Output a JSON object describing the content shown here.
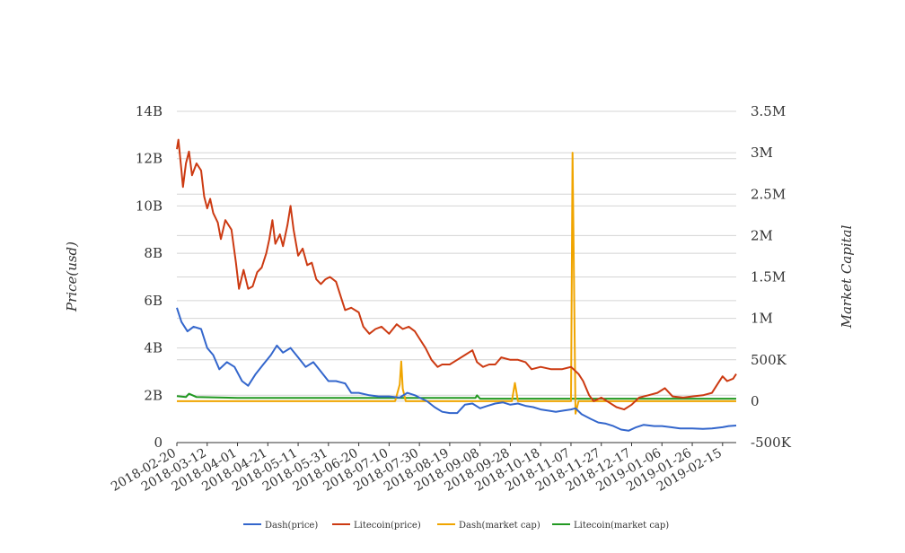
{
  "chart_data": {
    "type": "line",
    "title": "",
    "y_left_label": "Price(usd)",
    "y_right_label": "Market Capital",
    "y_left_ticks": [
      "0",
      "2B",
      "4B",
      "6B",
      "8B",
      "10B",
      "12B",
      "14B"
    ],
    "y_right_ticks": [
      "-500K",
      "0",
      "500K",
      "1M",
      "1.5M",
      "2M",
      "2.5M",
      "3M",
      "3.5M"
    ],
    "y_left_range": [
      0,
      14000000000
    ],
    "y_right_range": [
      -500000,
      3500000
    ],
    "x_range": [
      "2018-02-20",
      "2019-02-24"
    ],
    "x_ticks": [
      "2018-02-20",
      "2018-03-12",
      "2018-04-01",
      "2018-04-21",
      "2018-05-11",
      "2018-05-31",
      "2018-06-20",
      "2018-07-10",
      "2018-07-30",
      "2018-08-19",
      "2018-09-08",
      "2018-09-28",
      "2018-10-18",
      "2018-11-07",
      "2018-11-27",
      "2018-12-17",
      "2019-01-06",
      "2019-01-26",
      "2019-02-15"
    ],
    "grid": true,
    "legend_position": "bottom",
    "series": [
      {
        "name": "Dash(price)",
        "axis": "left",
        "color": "#3366cc",
        "points": [
          [
            "2018-02-20",
            5700000000.0
          ],
          [
            "2018-02-23",
            5100000000.0
          ],
          [
            "2018-02-27",
            4700000000.0
          ],
          [
            "2018-03-03",
            4900000000.0
          ],
          [
            "2018-03-08",
            4800000000.0
          ],
          [
            "2018-03-12",
            4000000000.0
          ],
          [
            "2018-03-16",
            3700000000.0
          ],
          [
            "2018-03-20",
            3100000000.0
          ],
          [
            "2018-03-25",
            3400000000.0
          ],
          [
            "2018-03-30",
            3200000000.0
          ],
          [
            "2018-04-04",
            2600000000.0
          ],
          [
            "2018-04-08",
            2400000000.0
          ],
          [
            "2018-04-13",
            2900000000.0
          ],
          [
            "2018-04-18",
            3300000000.0
          ],
          [
            "2018-04-23",
            3700000000.0
          ],
          [
            "2018-04-27",
            4100000000.0
          ],
          [
            "2018-05-01",
            3800000000.0
          ],
          [
            "2018-05-06",
            4000000000.0
          ],
          [
            "2018-05-11",
            3600000000.0
          ],
          [
            "2018-05-16",
            3200000000.0
          ],
          [
            "2018-05-21",
            3400000000.0
          ],
          [
            "2018-05-26",
            3000000000.0
          ],
          [
            "2018-05-31",
            2600000000.0
          ],
          [
            "2018-06-05",
            2600000000.0
          ],
          [
            "2018-06-11",
            2500000000.0
          ],
          [
            "2018-06-15",
            2100000000.0
          ],
          [
            "2018-06-20",
            2100000000.0
          ],
          [
            "2018-06-27",
            2000000000.0
          ],
          [
            "2018-07-03",
            1950000000.0
          ],
          [
            "2018-07-10",
            1950000000.0
          ],
          [
            "2018-07-17",
            1900000000.0
          ],
          [
            "2018-07-22",
            2100000000.0
          ],
          [
            "2018-07-27",
            2000000000.0
          ],
          [
            "2018-07-30",
            1900000000.0
          ],
          [
            "2018-08-04",
            1750000000.0
          ],
          [
            "2018-08-09",
            1500000000.0
          ],
          [
            "2018-08-14",
            1300000000.0
          ],
          [
            "2018-08-19",
            1250000000.0
          ],
          [
            "2018-08-24",
            1250000000.0
          ],
          [
            "2018-08-29",
            1600000000.0
          ],
          [
            "2018-09-03",
            1650000000.0
          ],
          [
            "2018-09-08",
            1450000000.0
          ],
          [
            "2018-09-13",
            1550000000.0
          ],
          [
            "2018-09-18",
            1650000000.0
          ],
          [
            "2018-09-23",
            1700000000.0
          ],
          [
            "2018-09-28",
            1600000000.0
          ],
          [
            "2018-10-03",
            1650000000.0
          ],
          [
            "2018-10-08",
            1550000000.0
          ],
          [
            "2018-10-13",
            1500000000.0
          ],
          [
            "2018-10-18",
            1400000000.0
          ],
          [
            "2018-10-23",
            1350000000.0
          ],
          [
            "2018-10-28",
            1300000000.0
          ],
          [
            "2018-11-02",
            1350000000.0
          ],
          [
            "2018-11-07",
            1400000000.0
          ],
          [
            "2018-11-10",
            1450000000.0
          ],
          [
            "2018-11-14",
            1200000000.0
          ],
          [
            "2018-11-20",
            1000000000.0
          ],
          [
            "2018-11-25",
            850000000.0
          ],
          [
            "2018-11-30",
            800000000.0
          ],
          [
            "2018-12-05",
            700000000.0
          ],
          [
            "2018-12-10",
            550000000.0
          ],
          [
            "2018-12-15",
            500000000.0
          ],
          [
            "2018-12-20",
            650000000.0
          ],
          [
            "2018-12-25",
            750000000.0
          ],
          [
            "2019-01-01",
            700000000.0
          ],
          [
            "2019-01-06",
            700000000.0
          ],
          [
            "2019-01-12",
            650000000.0
          ],
          [
            "2019-01-18",
            600000000.0
          ],
          [
            "2019-01-26",
            600000000.0
          ],
          [
            "2019-02-02",
            580000000.0
          ],
          [
            "2019-02-08",
            600000000.0
          ],
          [
            "2019-02-15",
            650000000.0
          ],
          [
            "2019-02-19",
            700000000.0
          ],
          [
            "2019-02-24",
            720000000.0
          ]
        ]
      },
      {
        "name": "Litecoin(price)",
        "axis": "left",
        "color": "#cc3a12",
        "points": [
          [
            "2018-02-20",
            12400000000.0
          ],
          [
            "2018-02-21",
            12800000000.0
          ],
          [
            "2018-02-23",
            11500000000.0
          ],
          [
            "2018-02-24",
            10800000000.0
          ],
          [
            "2018-02-26",
            11800000000.0
          ],
          [
            "2018-02-28",
            12300000000.0
          ],
          [
            "2018-03-02",
            11300000000.0
          ],
          [
            "2018-03-05",
            11800000000.0
          ],
          [
            "2018-03-08",
            11500000000.0
          ],
          [
            "2018-03-10",
            10400000000.0
          ],
          [
            "2018-03-12",
            9900000000.0
          ],
          [
            "2018-03-14",
            10300000000.0
          ],
          [
            "2018-03-16",
            9700000000.0
          ],
          [
            "2018-03-19",
            9300000000.0
          ],
          [
            "2018-03-21",
            8600000000.0
          ],
          [
            "2018-03-24",
            9400000000.0
          ],
          [
            "2018-03-28",
            9000000000.0
          ],
          [
            "2018-03-31",
            7600000000.0
          ],
          [
            "2018-04-02",
            6500000000.0
          ],
          [
            "2018-04-05",
            7300000000.0
          ],
          [
            "2018-04-08",
            6500000000.0
          ],
          [
            "2018-04-11",
            6600000000.0
          ],
          [
            "2018-04-14",
            7200000000.0
          ],
          [
            "2018-04-17",
            7400000000.0
          ],
          [
            "2018-04-20",
            8000000000.0
          ],
          [
            "2018-04-22",
            8600000000.0
          ],
          [
            "2018-04-24",
            9400000000.0
          ],
          [
            "2018-04-26",
            8400000000.0
          ],
          [
            "2018-04-29",
            8800000000.0
          ],
          [
            "2018-05-01",
            8300000000.0
          ],
          [
            "2018-05-04",
            9200000000.0
          ],
          [
            "2018-05-06",
            10000000000.0
          ],
          [
            "2018-05-08",
            9000000000.0
          ],
          [
            "2018-05-11",
            7900000000.0
          ],
          [
            "2018-05-14",
            8200000000.0
          ],
          [
            "2018-05-17",
            7500000000.0
          ],
          [
            "2018-05-20",
            7600000000.0
          ],
          [
            "2018-05-23",
            6900000000.0
          ],
          [
            "2018-05-26",
            6700000000.0
          ],
          [
            "2018-05-29",
            6900000000.0
          ],
          [
            "2018-06-01",
            7000000000.0
          ],
          [
            "2018-06-05",
            6800000000.0
          ],
          [
            "2018-06-08",
            6200000000.0
          ],
          [
            "2018-06-11",
            5600000000.0
          ],
          [
            "2018-06-15",
            5700000000.0
          ],
          [
            "2018-06-20",
            5500000000.0
          ],
          [
            "2018-06-23",
            4900000000.0
          ],
          [
            "2018-06-27",
            4600000000.0
          ],
          [
            "2018-07-01",
            4800000000.0
          ],
          [
            "2018-07-05",
            4900000000.0
          ],
          [
            "2018-07-10",
            4600000000.0
          ],
          [
            "2018-07-15",
            5000000000.0
          ],
          [
            "2018-07-19",
            4800000000.0
          ],
          [
            "2018-07-23",
            4900000000.0
          ],
          [
            "2018-07-27",
            4700000000.0
          ],
          [
            "2018-07-30",
            4400000000.0
          ],
          [
            "2018-08-03",
            4000000000.0
          ],
          [
            "2018-08-07",
            3500000000.0
          ],
          [
            "2018-08-11",
            3200000000.0
          ],
          [
            "2018-08-14",
            3300000000.0
          ],
          [
            "2018-08-19",
            3300000000.0
          ],
          [
            "2018-08-24",
            3500000000.0
          ],
          [
            "2018-08-29",
            3700000000.0
          ],
          [
            "2018-09-03",
            3900000000.0
          ],
          [
            "2018-09-06",
            3400000000.0
          ],
          [
            "2018-09-10",
            3200000000.0
          ],
          [
            "2018-09-14",
            3300000000.0
          ],
          [
            "2018-09-18",
            3300000000.0
          ],
          [
            "2018-09-22",
            3600000000.0
          ],
          [
            "2018-09-28",
            3500000000.0
          ],
          [
            "2018-10-03",
            3500000000.0
          ],
          [
            "2018-10-08",
            3400000000.0
          ],
          [
            "2018-10-12",
            3100000000.0
          ],
          [
            "2018-10-18",
            3200000000.0
          ],
          [
            "2018-10-25",
            3100000000.0
          ],
          [
            "2018-11-01",
            3100000000.0
          ],
          [
            "2018-11-07",
            3200000000.0
          ],
          [
            "2018-11-12",
            2900000000.0
          ],
          [
            "2018-11-15",
            2600000000.0
          ],
          [
            "2018-11-19",
            2000000000.0
          ],
          [
            "2018-11-22",
            1750000000.0
          ],
          [
            "2018-11-27",
            1900000000.0
          ],
          [
            "2018-12-02",
            1700000000.0
          ],
          [
            "2018-12-07",
            1500000000.0
          ],
          [
            "2018-12-12",
            1400000000.0
          ],
          [
            "2018-12-17",
            1600000000.0
          ],
          [
            "2018-12-22",
            1900000000.0
          ],
          [
            "2018-12-28",
            2000000000.0
          ],
          [
            "2019-01-03",
            2100000000.0
          ],
          [
            "2019-01-08",
            2300000000.0
          ],
          [
            "2019-01-13",
            1950000000.0
          ],
          [
            "2019-01-20",
            1900000000.0
          ],
          [
            "2019-01-26",
            1950000000.0
          ],
          [
            "2019-02-02",
            2000000000.0
          ],
          [
            "2019-02-08",
            2100000000.0
          ],
          [
            "2019-02-12",
            2500000000.0
          ],
          [
            "2019-02-15",
            2800000000.0
          ],
          [
            "2019-02-18",
            2600000000.0
          ],
          [
            "2019-02-22",
            2700000000.0
          ],
          [
            "2019-02-24",
            2900000000.0
          ]
        ]
      },
      {
        "name": "Dash(market cap)",
        "axis": "right",
        "color": "#f0a500",
        "points": [
          [
            "2018-02-20",
            0
          ],
          [
            "2018-07-14",
            0
          ],
          [
            "2018-07-17",
            200000
          ],
          [
            "2018-07-18",
            480000
          ],
          [
            "2018-07-19",
            150000
          ],
          [
            "2018-07-21",
            0
          ],
          [
            "2018-09-29",
            0
          ],
          [
            "2018-10-01",
            220000
          ],
          [
            "2018-10-03",
            0
          ],
          [
            "2018-11-07",
            0
          ],
          [
            "2018-11-08",
            3000000
          ],
          [
            "2018-11-09",
            1500000
          ],
          [
            "2018-11-10",
            -150000
          ],
          [
            "2018-11-12",
            0
          ],
          [
            "2019-02-24",
            0
          ]
        ]
      },
      {
        "name": "Litecoin(market cap)",
        "axis": "right",
        "color": "#229922",
        "points": [
          [
            "2018-02-20",
            60000
          ],
          [
            "2018-02-26",
            50000
          ],
          [
            "2018-02-28",
            90000
          ],
          [
            "2018-03-05",
            50000
          ],
          [
            "2018-04-01",
            40000
          ],
          [
            "2018-06-01",
            40000
          ],
          [
            "2018-09-05",
            40000
          ],
          [
            "2018-09-06",
            70000
          ],
          [
            "2018-09-08",
            30000
          ],
          [
            "2019-02-24",
            30000
          ]
        ]
      }
    ]
  },
  "legend": [
    {
      "label": "Dash(price)",
      "color": "#3366cc"
    },
    {
      "label": "Litecoin(price)",
      "color": "#cc3a12"
    },
    {
      "label": "Dash(market cap)",
      "color": "#f0a500"
    },
    {
      "label": "Litecoin(market cap)",
      "color": "#229922"
    }
  ]
}
